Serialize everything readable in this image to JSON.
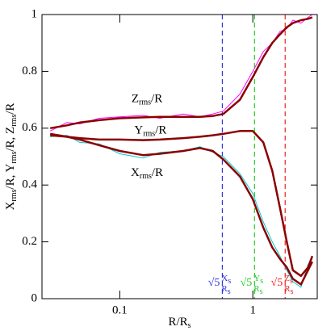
{
  "chart_data": {
    "type": "line",
    "xlabel": [
      {
        "text": "R/R"
      },
      {
        "sub": "s"
      }
    ],
    "ylabel": [
      {
        "text": "X"
      },
      {
        "sub": "rms"
      },
      {
        "text": "/R, Y"
      },
      {
        "sub": "rms"
      },
      {
        "text": "/R, Z"
      },
      {
        "sub": "rms"
      },
      {
        "text": "/R"
      }
    ],
    "xscale": "log",
    "xlim": [
      0.026,
      3.05
    ],
    "ylim": [
      0,
      1
    ],
    "xticks": [
      0.1,
      1
    ],
    "yticks": [
      0,
      0.2,
      0.4,
      0.6,
      0.8,
      1
    ],
    "x": [
      0.03,
      0.04,
      0.05,
      0.07,
      0.1,
      0.15,
      0.2,
      0.3,
      0.4,
      0.5,
      0.6,
      0.8,
      1.0,
      1.2,
      1.4,
      1.6,
      1.8,
      2.0,
      2.3,
      2.6,
      2.8
    ],
    "series": [
      {
        "color": "#ff00ff",
        "width": 1,
        "values": [
          0.59,
          0.62,
          0.615,
          0.635,
          0.64,
          0.645,
          0.635,
          0.65,
          0.64,
          0.65,
          0.66,
          0.72,
          0.8,
          0.87,
          0.9,
          0.94,
          0.95,
          0.98,
          0.97,
          0.99,
          1.0
        ]
      },
      {
        "color": "#00cccc",
        "width": 1,
        "values": [
          0.57,
          0.575,
          0.55,
          0.545,
          0.51,
          0.495,
          0.515,
          0.52,
          0.535,
          0.515,
          0.5,
          0.44,
          0.37,
          0.27,
          0.2,
          0.15,
          0.1,
          0.06,
          0.04,
          0.12,
          0.14
        ]
      },
      {
        "color": "#8b0000",
        "width": 2.5,
        "values": [
          0.6,
          0.61,
          0.62,
          0.628,
          0.635,
          0.638,
          0.64,
          0.64,
          0.64,
          0.643,
          0.65,
          0.7,
          0.78,
          0.85,
          0.9,
          0.93,
          0.955,
          0.97,
          0.98,
          0.985,
          0.99
        ]
      },
      {
        "color": "#8b0000",
        "width": 2.5,
        "values": [
          0.575,
          0.57,
          0.565,
          0.56,
          0.56,
          0.558,
          0.56,
          0.565,
          0.57,
          0.575,
          0.58,
          0.59,
          0.59,
          0.55,
          0.45,
          0.32,
          0.2,
          0.1,
          0.08,
          0.11,
          0.15
        ]
      },
      {
        "color": "#8b0000",
        "width": 2.5,
        "values": [
          0.58,
          0.57,
          0.56,
          0.54,
          0.52,
          0.505,
          0.51,
          0.52,
          0.53,
          0.52,
          0.49,
          0.43,
          0.35,
          0.25,
          0.18,
          0.14,
          0.11,
          0.07,
          0.05,
          0.1,
          0.13
        ]
      }
    ],
    "curve_labels": [
      {
        "x": 0.16,
        "y": 0.7,
        "parts": [
          {
            "text": "Z"
          },
          {
            "sub": "rms"
          },
          {
            "text": "/R"
          }
        ]
      },
      {
        "x": 0.17,
        "y": 0.59,
        "parts": [
          {
            "text": "Y"
          },
          {
            "sub": "rms"
          },
          {
            "text": "/R"
          }
        ]
      },
      {
        "x": 0.16,
        "y": 0.44,
        "parts": [
          {
            "text": "X"
          },
          {
            "sub": "rms"
          },
          {
            "text": "/R"
          }
        ]
      }
    ],
    "vlines": [
      {
        "x": 0.59,
        "color": "#3333dd",
        "prefix": "√5",
        "num": [
          {
            "text": "X"
          },
          {
            "sub": "s"
          }
        ],
        "den": [
          {
            "text": "R"
          },
          {
            "sub": "s"
          }
        ]
      },
      {
        "x": 1.03,
        "color": "#22cc22",
        "prefix": "√5",
        "num": [
          {
            "text": "Y"
          },
          {
            "sub": "s"
          }
        ],
        "den": [
          {
            "text": "R"
          },
          {
            "sub": "s"
          }
        ]
      },
      {
        "x": 1.75,
        "color": "#ee2222",
        "prefix": "√5",
        "num": [
          {
            "text": "Z"
          },
          {
            "sub": "s"
          }
        ],
        "den": [
          {
            "text": "R"
          },
          {
            "sub": "s"
          }
        ]
      }
    ]
  }
}
